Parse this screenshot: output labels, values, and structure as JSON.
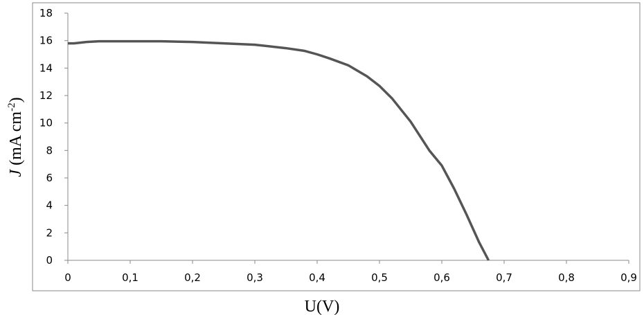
{
  "chart_data": {
    "type": "line",
    "xlabel": "U(V)",
    "ylabel": [
      "J",
      " (mA cm",
      "-2",
      ")"
    ],
    "x": [
      0,
      0.01,
      0.02,
      0.03,
      0.05,
      0.1,
      0.15,
      0.2,
      0.25,
      0.3,
      0.35,
      0.38,
      0.4,
      0.42,
      0.45,
      0.48,
      0.5,
      0.52,
      0.55,
      0.58,
      0.6,
      0.62,
      0.64,
      0.66,
      0.675
    ],
    "series": [
      {
        "color": "#555555",
        "values": [
          15.8,
          15.8,
          15.85,
          15.9,
          15.95,
          15.95,
          15.95,
          15.9,
          15.8,
          15.7,
          15.45,
          15.25,
          15.0,
          14.7,
          14.2,
          13.4,
          12.7,
          11.8,
          10.1,
          8.0,
          6.9,
          5.2,
          3.3,
          1.3,
          0
        ]
      }
    ],
    "xlim": [
      0,
      0.9
    ],
    "xticks": [
      0,
      {
        "value": 0.1,
        "label": "0,1"
      },
      {
        "value": 0.2,
        "label": "0,2"
      },
      {
        "value": 0.3,
        "label": "0,3"
      },
      {
        "value": 0.4,
        "label": "0,4"
      },
      {
        "value": 0.5,
        "label": "0,5"
      },
      {
        "value": 0.6,
        "label": "0,6"
      },
      {
        "value": 0.7,
        "label": "0,7"
      },
      {
        "value": 0.8,
        "label": "0,8"
      },
      {
        "value": 0.9,
        "label": "0,9"
      }
    ],
    "ylim": [
      0,
      18
    ],
    "yticks": [
      0,
      2,
      4,
      6,
      8,
      10,
      12,
      14,
      16,
      18
    ],
    "grid": false
  }
}
